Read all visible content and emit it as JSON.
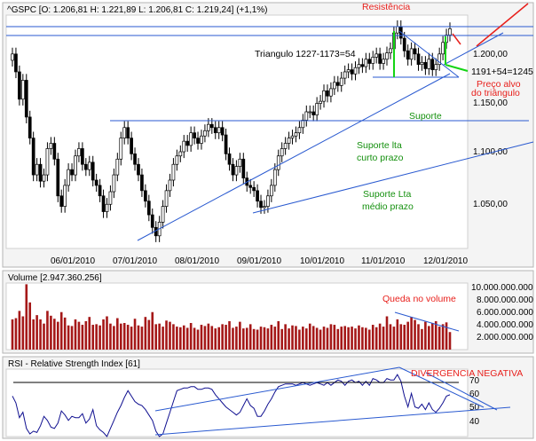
{
  "colors": {
    "panel_bg": "#f0f0f0",
    "plot_bg": "#ffffff",
    "candle": "#000000",
    "volume_bar": "#a51818",
    "rsi_line": "#101090",
    "trendline": "#2a5ad0",
    "annotation_red": "#e8201c",
    "annotation_green": "#14900e"
  },
  "chart_data": [
    {
      "type": "candlestick",
      "title": "^GSPC [O: 1.206,81  H: 1.221,89  L: 1.206,81  C: 1.219,24] (+1,1%)",
      "x_tick_labels": [
        "06/01/2010",
        "07/01/2010",
        "08/01/2010",
        "09/01/2010",
        "10/01/2010",
        "11/01/2010",
        "12/01/2010"
      ],
      "y_tick_labels": [
        "1.200,00",
        "1.150,00",
        "1.100,00",
        "1.050,00"
      ],
      "ylim": [
        1010,
        1232
      ],
      "closes": [
        1195,
        1178,
        1152,
        1170,
        1135,
        1115,
        1080,
        1090,
        1074,
        1080,
        1105,
        1110,
        1095,
        1060,
        1050,
        1070,
        1085,
        1080,
        1098,
        1105,
        1090,
        1085,
        1092,
        1075,
        1070,
        1060,
        1045,
        1052,
        1064,
        1080,
        1095,
        1115,
        1125,
        1115,
        1100,
        1090,
        1080,
        1065,
        1055,
        1042,
        1030,
        1022,
        1035,
        1050,
        1065,
        1075,
        1090,
        1098,
        1102,
        1112,
        1108,
        1120,
        1115,
        1110,
        1117,
        1122,
        1128,
        1125,
        1120,
        1125,
        1118,
        1100,
        1090,
        1080,
        1088,
        1095,
        1077,
        1070,
        1068,
        1065,
        1055,
        1049,
        1050,
        1060,
        1070,
        1085,
        1098,
        1105,
        1110,
        1115,
        1117,
        1120,
        1125,
        1132,
        1140,
        1140,
        1137,
        1148,
        1150,
        1160,
        1155,
        1162,
        1168,
        1165,
        1172,
        1178,
        1180,
        1176,
        1182,
        1185,
        1183,
        1190,
        1186,
        1192,
        1195,
        1186,
        1190,
        1196,
        1200,
        1215,
        1221,
        1210,
        1198,
        1190,
        1200,
        1195,
        1185,
        1187,
        1181,
        1190,
        1180,
        1185,
        1195,
        1206,
        1213,
        1219
      ],
      "resistencia": 1227,
      "suporte": 1130,
      "triangle_support": 1173,
      "volume": {
        "title": "Volume [2.947.360.256]",
        "y_tick_labels": [
          "10.000.000.000",
          "8.000.000.000",
          "6.000.000.000",
          "4.000.000.000",
          "2.000.000.000"
        ],
        "ylim": [
          0,
          11000000000
        ],
        "values": [
          5000000000,
          5200000000,
          6400000000,
          5500000000,
          10800000000,
          7800000000,
          5000000000,
          5700000000,
          5000000000,
          4300000000,
          6400000000,
          5600000000,
          5100000000,
          4600000000,
          6200000000,
          5300000000,
          4000000000,
          3900000000,
          5000000000,
          4600000000,
          4100000000,
          4700000000,
          5400000000,
          4100000000,
          4200000000,
          4000000000,
          5000000000,
          5500000000,
          4300000000,
          3900000000,
          5200000000,
          4300000000,
          4400000000,
          4100000000,
          3800000000,
          5100000000,
          4000000000,
          3800000000,
          5400000000,
          4900000000,
          6200000000,
          4200000000,
          4300000000,
          3800000000,
          4800000000,
          4600000000,
          4200000000,
          3800000000,
          3700000000,
          4000000000,
          3600000000,
          4400000000,
          3600000000,
          3300000000,
          4100000000,
          3900000000,
          4300000000,
          3900000000,
          3500000000,
          3700000000,
          4200000000,
          4100000000,
          4700000000,
          3600000000,
          3800000000,
          4600000000,
          3500000000,
          3600000000,
          4200000000,
          3400000000,
          3300000000,
          3800000000,
          3700000000,
          3500000000,
          4100000000,
          3800000000,
          4700000000,
          3400000000,
          4200000000,
          3500000000,
          4000000000,
          3900000000,
          3300000000,
          3800000000,
          3500000000,
          4300000000,
          3900000000,
          3600000000,
          3300000000,
          3800000000,
          3600000000,
          4200000000,
          4100000000,
          3400000000,
          3800000000,
          3900000000,
          3700000000,
          3800000000,
          3500000000,
          4000000000,
          3700000000,
          3600000000,
          3300000000,
          4100000000,
          3700000000,
          4300000000,
          3800000000,
          5500000000,
          4200000000,
          3800000000,
          5000000000,
          4200000000,
          4100000000,
          4600000000,
          5400000000,
          4900000000,
          4200000000,
          3400000000,
          4600000000,
          3900000000,
          4400000000,
          4700000000,
          3800000000,
          4200000000,
          4500000000,
          2900000000
        ]
      },
      "rsi": {
        "title": "RSI - Relative Strength Index [61]",
        "y_tick_labels": [
          "70",
          "60",
          "50",
          "40"
        ],
        "ylim": [
          30,
          80
        ],
        "values": [
          60,
          55,
          44,
          48,
          36,
          32,
          34,
          33,
          38,
          45,
          42,
          37,
          36,
          40,
          49,
          46,
          42,
          45,
          44,
          44,
          47,
          40,
          43,
          50,
          38,
          35,
          33,
          30,
          36,
          42,
          48,
          53,
          59,
          64,
          60,
          56,
          54,
          53,
          50,
          46,
          42,
          34,
          30,
          32,
          40,
          48,
          56,
          64,
          65,
          66,
          66,
          67,
          67,
          65,
          65,
          66,
          66,
          65,
          61,
          58,
          55,
          52,
          50,
          48,
          46,
          48,
          53,
          58,
          53,
          51,
          45,
          45,
          49,
          54,
          58,
          63,
          67,
          68,
          69,
          69,
          69,
          68,
          69,
          70,
          69,
          68,
          69,
          70,
          69,
          68,
          70,
          68,
          70,
          72,
          71,
          68,
          71,
          72,
          70,
          71,
          68,
          71,
          68,
          73,
          72,
          70,
          70,
          73,
          72,
          72,
          76,
          71,
          60,
          52,
          62,
          52,
          51,
          54,
          50,
          55,
          50,
          48,
          51,
          55,
          60,
          61
        ]
      },
      "annotations": [
        {
          "text": "Resistência",
          "color": "red"
        },
        {
          "text": "Triangulo 1227-1173=54",
          "color": "black"
        },
        {
          "text": "1191+54=1245",
          "color": "black"
        },
        {
          "text": "Preço alvo",
          "color": "red"
        },
        {
          "text": "do triângulo",
          "color": "red"
        },
        {
          "text": "Suporte",
          "color": "green"
        },
        {
          "text": "Suporte lta",
          "color": "green"
        },
        {
          "text": "curto prazo",
          "color": "green"
        },
        {
          "text": "Suporte Lta",
          "color": "green"
        },
        {
          "text": "médio prazo",
          "color": "green"
        },
        {
          "text": "Queda no volume",
          "color": "red"
        },
        {
          "text": "DIVERGENCIA NEGATIVA",
          "color": "red"
        }
      ]
    }
  ]
}
